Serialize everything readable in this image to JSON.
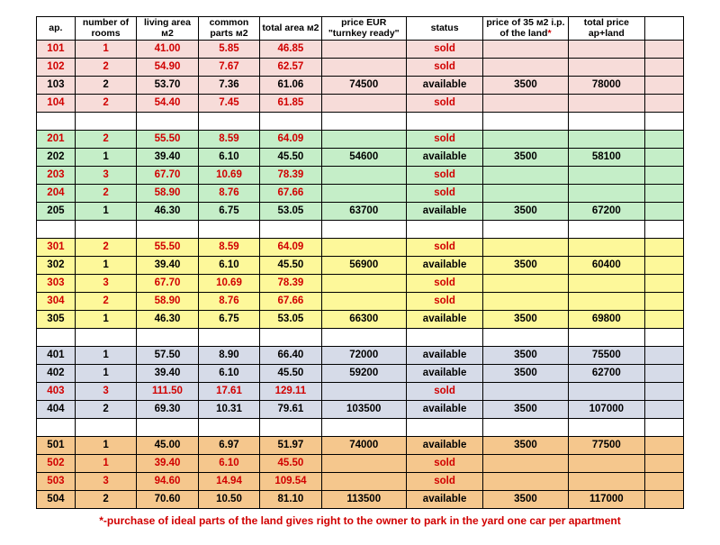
{
  "columns": [
    "ap.",
    "number of rooms",
    "living area м2",
    "common parts м2",
    "total area м2",
    "price EUR \"turnkey ready\"",
    "status",
    "price of 35 м2 i.p. of the land*",
    "total price ap+land",
    ""
  ],
  "groups": [
    {
      "bg": "#f7dcd9",
      "rows": [
        {
          "ap": "101",
          "rooms": "1",
          "living": "41.00",
          "common": "5.85",
          "total": "46.85",
          "price": "",
          "status": "sold",
          "land": "",
          "tot": ""
        },
        {
          "ap": "102",
          "rooms": "2",
          "living": "54.90",
          "common": "7.67",
          "total": "62.57",
          "price": "",
          "status": "sold",
          "land": "",
          "tot": ""
        },
        {
          "ap": "103",
          "rooms": "2",
          "living": "53.70",
          "common": "7.36",
          "total": "61.06",
          "price": "74500",
          "status": "available",
          "land": "3500",
          "tot": "78000"
        },
        {
          "ap": "104",
          "rooms": "2",
          "living": "54.40",
          "common": "7.45",
          "total": "61.85",
          "price": "",
          "status": "sold",
          "land": "",
          "tot": ""
        }
      ]
    },
    {
      "bg": "#c5eec8",
      "rows": [
        {
          "ap": "201",
          "rooms": "2",
          "living": "55.50",
          "common": "8.59",
          "total": "64.09",
          "price": "",
          "status": "sold",
          "land": "",
          "tot": ""
        },
        {
          "ap": "202",
          "rooms": "1",
          "living": "39.40",
          "common": "6.10",
          "total": "45.50",
          "price": "54600",
          "status": "available",
          "land": "3500",
          "tot": "58100"
        },
        {
          "ap": "203",
          "rooms": "3",
          "living": "67.70",
          "common": "10.69",
          "total": "78.39",
          "price": "",
          "status": "sold",
          "land": "",
          "tot": ""
        },
        {
          "ap": "204",
          "rooms": "2",
          "living": "58.90",
          "common": "8.76",
          "total": "67.66",
          "price": "",
          "status": "sold",
          "land": "",
          "tot": ""
        },
        {
          "ap": "205",
          "rooms": "1",
          "living": "46.30",
          "common": "6.75",
          "total": "53.05",
          "price": "63700",
          "status": "available",
          "land": "3500",
          "tot": "67200"
        }
      ]
    },
    {
      "bg": "#fdf89a",
      "rows": [
        {
          "ap": "301",
          "rooms": "2",
          "living": "55.50",
          "common": "8.59",
          "total": "64.09",
          "price": "",
          "status": "sold",
          "land": "",
          "tot": ""
        },
        {
          "ap": "302",
          "rooms": "1",
          "living": "39.40",
          "common": "6.10",
          "total": "45.50",
          "price": "56900",
          "status": "available",
          "land": "3500",
          "tot": "60400"
        },
        {
          "ap": "303",
          "rooms": "3",
          "living": "67.70",
          "common": "10.69",
          "total": "78.39",
          "price": "",
          "status": "sold",
          "land": "",
          "tot": ""
        },
        {
          "ap": "304",
          "rooms": "2",
          "living": "58.90",
          "common": "8.76",
          "total": "67.66",
          "price": "",
          "status": "sold",
          "land": "",
          "tot": ""
        },
        {
          "ap": "305",
          "rooms": "1",
          "living": "46.30",
          "common": "6.75",
          "total": "53.05",
          "price": "66300",
          "status": "available",
          "land": "3500",
          "tot": "69800"
        }
      ]
    },
    {
      "bg": "#d6dbe8",
      "rows": [
        {
          "ap": "401",
          "rooms": "1",
          "living": "57.50",
          "common": "8.90",
          "total": "66.40",
          "price": "72000",
          "status": "available",
          "land": "3500",
          "tot": "75500"
        },
        {
          "ap": "402",
          "rooms": "1",
          "living": "39.40",
          "common": "6.10",
          "total": "45.50",
          "price": "59200",
          "status": "available",
          "land": "3500",
          "tot": "62700"
        },
        {
          "ap": "403",
          "rooms": "3",
          "living": "111.50",
          "common": "17.61",
          "total": "129.11",
          "price": "",
          "status": "sold",
          "land": "",
          "tot": ""
        },
        {
          "ap": "404",
          "rooms": "2",
          "living": "69.30",
          "common": "10.31",
          "total": "79.61",
          "price": "103500",
          "status": "available",
          "land": "3500",
          "tot": "107000"
        }
      ]
    },
    {
      "bg": "#f5c78d",
      "rows": [
        {
          "ap": "501",
          "rooms": "1",
          "living": "45.00",
          "common": "6.97",
          "total": "51.97",
          "price": "74000",
          "status": "available",
          "land": "3500",
          "tot": "77500"
        },
        {
          "ap": "502",
          "rooms": "1",
          "living": "39.40",
          "common": "6.10",
          "total": "45.50",
          "price": "",
          "status": "sold",
          "land": "",
          "tot": ""
        },
        {
          "ap": "503",
          "rooms": "3",
          "living": "94.60",
          "common": "14.94",
          "total": "109.54",
          "price": "",
          "status": "sold",
          "land": "",
          "tot": ""
        },
        {
          "ap": "504",
          "rooms": "2",
          "living": "70.60",
          "common": "10.50",
          "total": "81.10",
          "price": "113500",
          "status": "available",
          "land": "3500",
          "tot": "117000"
        }
      ]
    }
  ],
  "footnote": "*-purchase of ideal parts of the land gives right to the owner to park in the yard one car per apartment",
  "col_widths_pct": [
    5,
    8,
    8,
    8,
    8,
    11,
    10,
    11,
    10,
    5
  ],
  "colors": {
    "sold_text": "#d10000",
    "avail_text": "#000000",
    "border": "#000000",
    "bg": "#ffffff"
  },
  "font": {
    "family": "Arial",
    "size_body": 11.5,
    "size_header": 10.5,
    "weight_header": "bold"
  }
}
